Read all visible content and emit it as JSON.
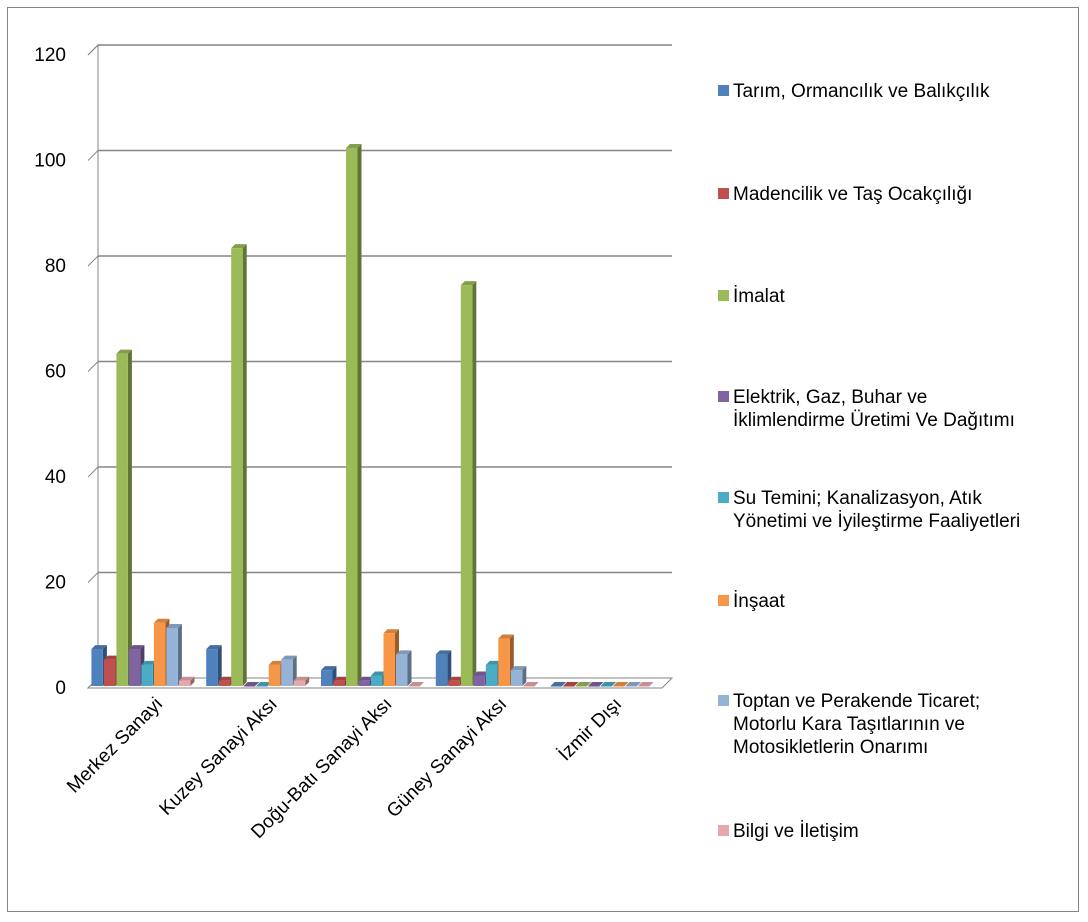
{
  "chart_data": {
    "type": "bar",
    "subtype": "3d-clustered-column",
    "title": "",
    "xlabel": "",
    "ylabel": "",
    "ylim": [
      0,
      120
    ],
    "yticks": [
      "0",
      "20",
      "40",
      "60",
      "80",
      "100",
      "120"
    ],
    "grid": true,
    "legend_position": "right",
    "categories": [
      "Merkez Sanayi",
      "Kuzey Sanayi Aksı",
      "Doğu-Batı Sanayi Aksı",
      "Güney Sanayi Aksı",
      "İzmir Dışı"
    ],
    "series": [
      {
        "name": "Tarım, Ormancılık ve Balıkçılık",
        "color": "#4F81BD",
        "values": [
          7,
          7,
          3,
          6,
          0
        ]
      },
      {
        "name": "Madencilik ve Taş Ocakçılığı",
        "color": "#C0504D",
        "values": [
          5,
          1,
          1,
          1,
          0
        ]
      },
      {
        "name": "İmalat",
        "color": "#9BBB59",
        "values": [
          63,
          83,
          102,
          76,
          0
        ]
      },
      {
        "name": "Elektrik, Gaz, Buhar ve İklimlendirme Üretimi Ve Dağıtımı",
        "color": "#8064A2",
        "values": [
          7,
          0,
          1,
          2,
          0
        ]
      },
      {
        "name": "Su Temini; Kanalizasyon, Atık Yönetimi ve İyileştirme Faaliyetleri",
        "color": "#4BACC6",
        "values": [
          4,
          0,
          2,
          4,
          0
        ]
      },
      {
        "name": "İnşaat",
        "color": "#F79646",
        "values": [
          12,
          4,
          10,
          9,
          0
        ]
      },
      {
        "name": "Toptan ve Perakende Ticaret; Motorlu Kara Taşıtlarının ve Motosikletlerin Onarımı",
        "color": "#95B3D7",
        "values": [
          11,
          5,
          6,
          3,
          0
        ]
      },
      {
        "name": "Bilgi ve İletişim",
        "color": "#E6A9AB",
        "values": [
          1,
          1,
          0,
          0,
          0
        ]
      }
    ]
  }
}
